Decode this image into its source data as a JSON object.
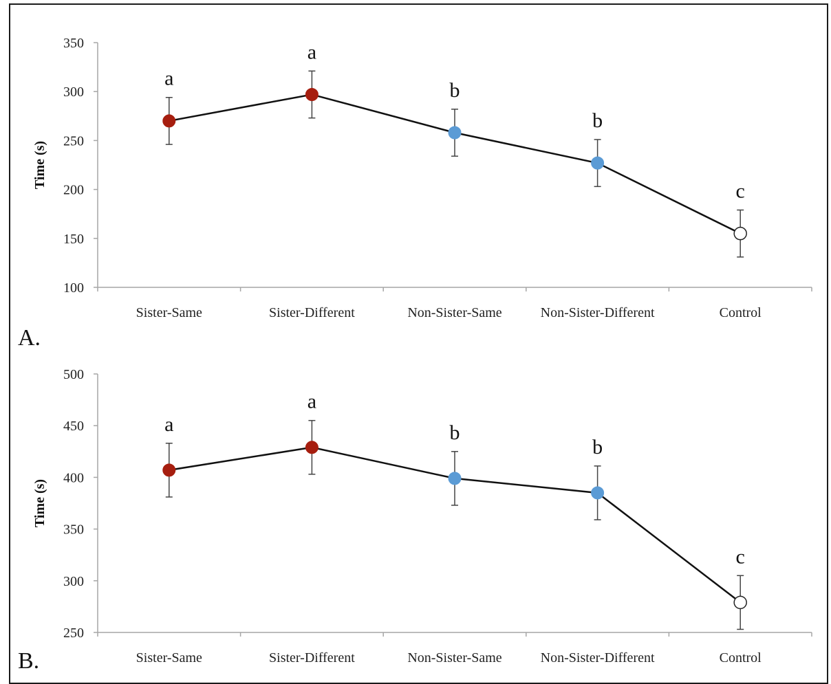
{
  "colors": {
    "sister": "#a61e0f",
    "non_sister": "#5b9bd5",
    "control": "#ffffff",
    "line": "#111111",
    "axis": "#a6a6a6",
    "errorbar": "#444444"
  },
  "chart_data": [
    {
      "type": "line",
      "panel_label": "A.",
      "ylabel": "Time (s)",
      "xlabel": "",
      "ylim": [
        100,
        350
      ],
      "yticks": [
        100,
        150,
        200,
        250,
        300,
        350
      ],
      "categories": [
        "Sister-Same",
        "Sister-Different",
        "Non-Sister-Same",
        "Non-Sister-Different",
        "Control"
      ],
      "values": [
        270,
        297,
        258,
        227,
        155
      ],
      "error": [
        24,
        24,
        24,
        24,
        24
      ],
      "significance_letters": [
        "a",
        "a",
        "b",
        "b",
        "c"
      ],
      "point_colors": [
        "sister",
        "sister",
        "non_sister",
        "non_sister",
        "control"
      ],
      "grid": false,
      "legend": "none"
    },
    {
      "type": "line",
      "panel_label": "B.",
      "ylabel": "Time (s)",
      "xlabel": "",
      "ylim": [
        250,
        500
      ],
      "yticks": [
        250,
        300,
        350,
        400,
        450,
        500
      ],
      "categories": [
        "Sister-Same",
        "Sister-Different",
        "Non-Sister-Same",
        "Non-Sister-Different",
        "Control"
      ],
      "values": [
        407,
        429,
        399,
        385,
        279
      ],
      "error": [
        26,
        26,
        26,
        26,
        26
      ],
      "significance_letters": [
        "a",
        "a",
        "b",
        "b",
        "c"
      ],
      "point_colors": [
        "sister",
        "sister",
        "non_sister",
        "non_sister",
        "control"
      ],
      "grid": false,
      "legend": "none"
    }
  ]
}
